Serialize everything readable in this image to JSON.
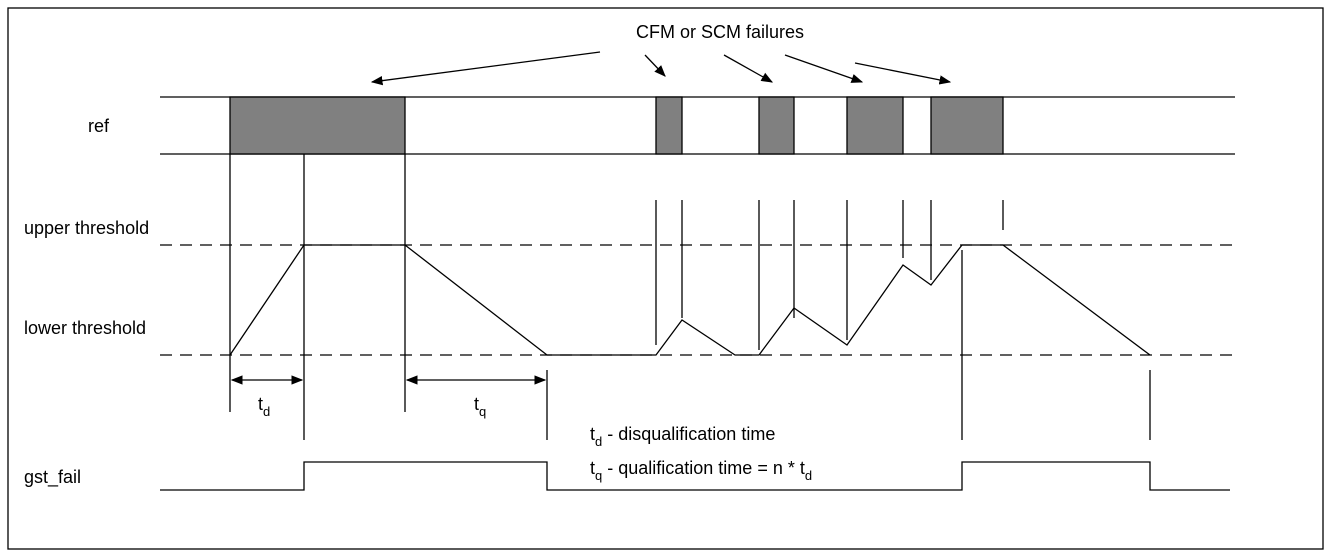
{
  "labels": {
    "title": "CFM or SCM failures",
    "ref": "ref",
    "upper": "upper threshold",
    "lower": "lower threshold",
    "gst_fail": "gst_fail"
  },
  "intervals": [
    {
      "symbol": "t",
      "sub": "d"
    },
    {
      "symbol": "t",
      "sub": "q"
    }
  ],
  "notes": [
    {
      "symbol": "t",
      "sub": "d",
      "text": "- disqualification time"
    },
    {
      "symbol": "t",
      "sub": "q",
      "text": "- qualification time = n *",
      "tail_symbol": "t",
      "tail_sub": "d"
    }
  ]
}
